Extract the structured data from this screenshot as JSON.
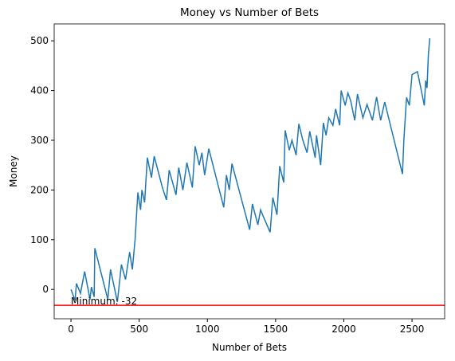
{
  "chart_data": {
    "type": "line",
    "title": "Money vs Number of Bets",
    "xlabel": "Number of Bets",
    "ylabel": "Money",
    "x": [
      0,
      30,
      40,
      70,
      100,
      140,
      150,
      170,
      175,
      270,
      290,
      340,
      370,
      400,
      430,
      450,
      470,
      490,
      510,
      520,
      540,
      560,
      590,
      610,
      670,
      700,
      720,
      770,
      790,
      820,
      850,
      890,
      910,
      940,
      960,
      980,
      1010,
      1120,
      1140,
      1160,
      1180,
      1310,
      1330,
      1370,
      1390,
      1420,
      1460,
      1480,
      1510,
      1530,
      1560,
      1570,
      1600,
      1620,
      1650,
      1670,
      1700,
      1730,
      1750,
      1790,
      1800,
      1830,
      1850,
      1870,
      1890,
      1920,
      1940,
      1970,
      1980,
      2010,
      2030,
      2050,
      2080,
      2100,
      2140,
      2170,
      2210,
      2240,
      2270,
      2300,
      2430,
      2440,
      2460,
      2480,
      2500,
      2540,
      2590,
      2600,
      2610,
      2620,
      2630
    ],
    "values": [
      0,
      -22,
      12,
      -8,
      36,
      -20,
      5,
      -15,
      83,
      -20,
      40,
      -25,
      50,
      20,
      75,
      40,
      100,
      195,
      160,
      200,
      175,
      265,
      225,
      268,
      205,
      180,
      240,
      190,
      245,
      200,
      255,
      205,
      288,
      250,
      275,
      230,
      283,
      165,
      230,
      200,
      253,
      120,
      172,
      130,
      160,
      140,
      115,
      185,
      150,
      248,
      215,
      320,
      280,
      300,
      270,
      333,
      300,
      275,
      318,
      265,
      310,
      250,
      335,
      310,
      345,
      330,
      363,
      330,
      400,
      370,
      395,
      380,
      340,
      393,
      345,
      372,
      340,
      387,
      340,
      377,
      232,
      300,
      386,
      370,
      432,
      438,
      370,
      420,
      405,
      472,
      505
    ],
    "color": "#1f77b4",
    "xlim": [
      -123,
      2739
    ],
    "ylim": [
      -59,
      534
    ],
    "xticks": [
      0,
      500,
      1000,
      1500,
      2000,
      2500
    ],
    "yticks": [
      0,
      100,
      200,
      300,
      400,
      500
    ],
    "hline": {
      "value": -32,
      "color": "red",
      "label": "Minimum: -32"
    }
  }
}
